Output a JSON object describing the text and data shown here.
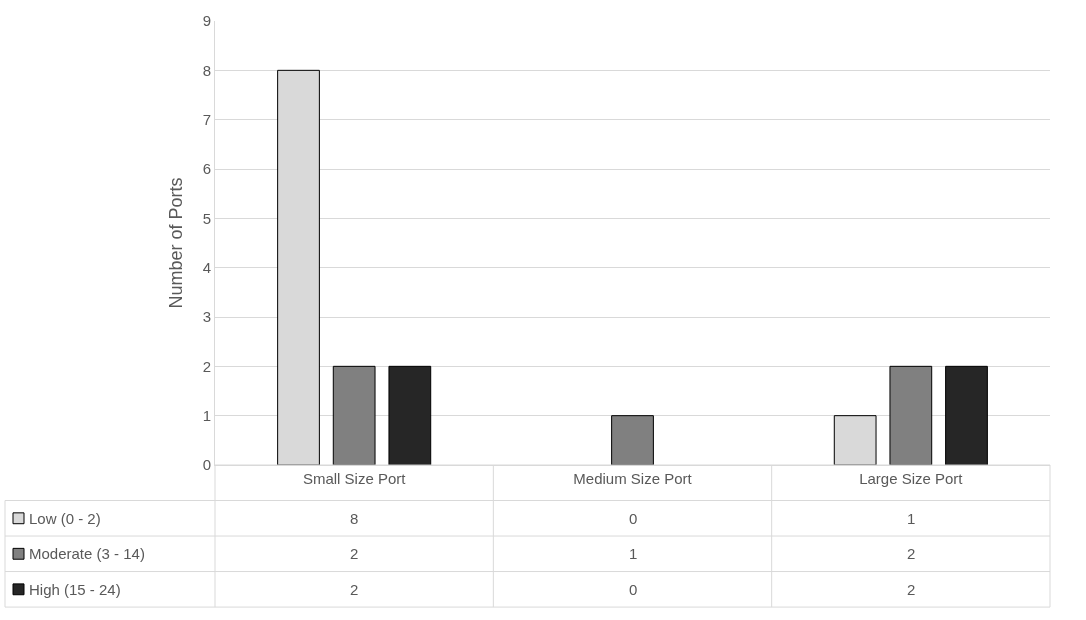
{
  "chart_data": {
    "type": "bar",
    "ylabel": "Number of Ports",
    "categories": [
      "Small Size Port",
      "Medium Size Port",
      "Large Size Port"
    ],
    "series": [
      {
        "name": "Low (0 - 2)",
        "color": "#d9d9d9",
        "values": [
          8,
          0,
          1
        ]
      },
      {
        "name": "Moderate (3 - 14)",
        "color": "#808080",
        "values": [
          2,
          1,
          2
        ]
      },
      {
        "name": "High (15 - 24)",
        "color": "#262626",
        "values": [
          2,
          0,
          2
        ]
      }
    ],
    "ylim": [
      0,
      9
    ],
    "yticks": [
      0,
      1,
      2,
      3,
      4,
      5,
      6,
      7,
      8,
      9
    ],
    "grid": "y",
    "legend": "bottom",
    "data_labels": true
  }
}
